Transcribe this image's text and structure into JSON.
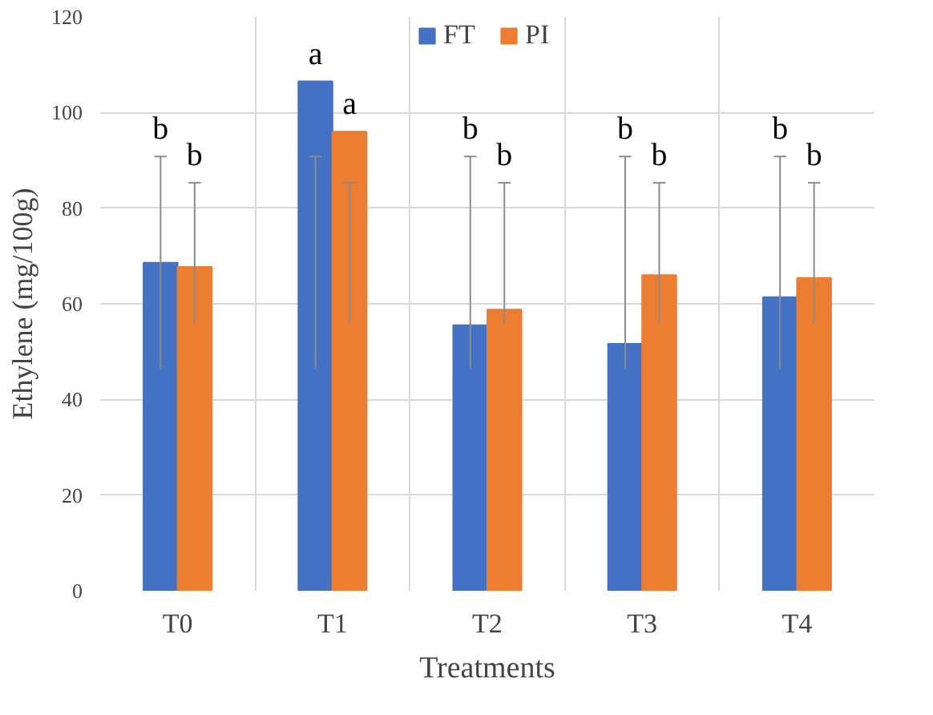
{
  "chart_data": {
    "type": "bar",
    "xlabel": "Treatments",
    "ylabel": "Ethylene (mg/100g)",
    "categories": [
      "T0",
      "T1",
      "T2",
      "T3",
      "T4"
    ],
    "series": [
      {
        "name": "FT",
        "color": "#4472c4",
        "values": [
          68.6,
          106.5,
          55.5,
          51.6,
          61.4
        ],
        "errors": [
          [
            46.5,
            90.8
          ],
          [
            46.5,
            90.8
          ],
          [
            46.5,
            90.8
          ],
          [
            46.5,
            90.8
          ],
          [
            46.5,
            90.8
          ]
        ]
      },
      {
        "name": "PI",
        "color": "#ed7d31",
        "values": [
          67.7,
          96,
          58.8,
          66,
          65.4
        ],
        "errors": [
          [
            55.9,
            85.3
          ],
          [
            55.9,
            85.3
          ],
          [
            55.9,
            85.3
          ],
          [
            55.9,
            85.3
          ],
          [
            55.9,
            85.3
          ]
        ]
      }
    ],
    "ylim": [
      0,
      120
    ],
    "yticks": [
      0,
      20,
      40,
      60,
      80,
      100,
      120
    ],
    "grid": true,
    "legend": "top",
    "annotations": [
      "b",
      "b",
      "a",
      "a",
      "b",
      "b",
      "b",
      "b",
      "b",
      "b"
    ]
  }
}
